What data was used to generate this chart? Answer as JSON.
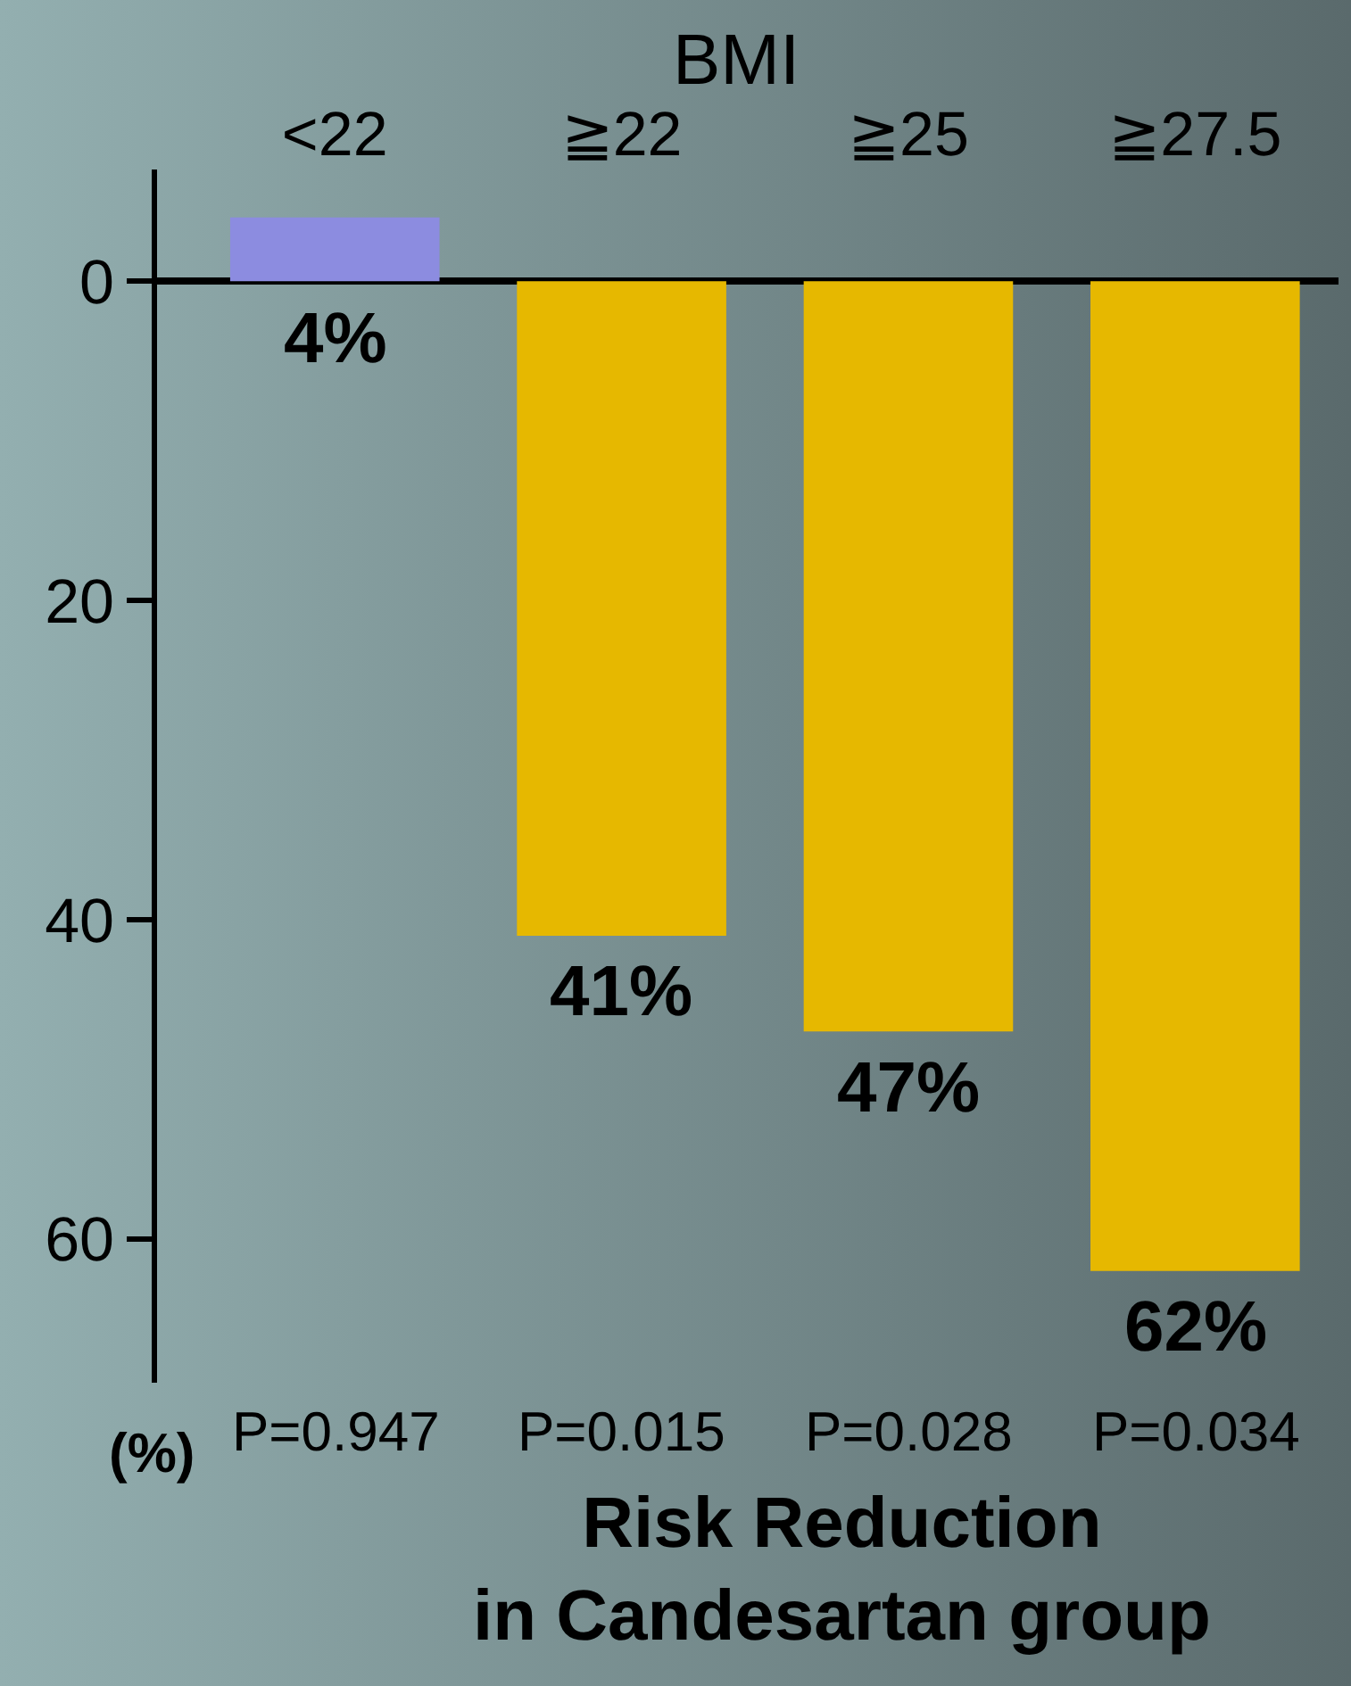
{
  "chart_data": {
    "type": "bar",
    "title": "BMI",
    "categories": [
      "<22",
      "≧22",
      "≧25",
      "≧27.5"
    ],
    "values": [
      -4,
      41,
      47,
      62
    ],
    "colors": [
      "#8c8ce0",
      "#e6b800",
      "#e6b800",
      "#e6b800"
    ],
    "value_labels": [
      null,
      "41%",
      "47%",
      "62%"
    ],
    "ylim": [
      69,
      -7
    ],
    "yticks": [
      0,
      20,
      40,
      60
    ],
    "ylabel": "(%)",
    "xlabel": "Risk Reduction\nin Candesartan group",
    "annotations": [
      "P=0.947",
      "P=0.015",
      "P=0.028",
      "P=0.034",
      {
        "text": "4%",
        "x": "<22",
        "y": 0
      }
    ],
    "grid": false
  }
}
